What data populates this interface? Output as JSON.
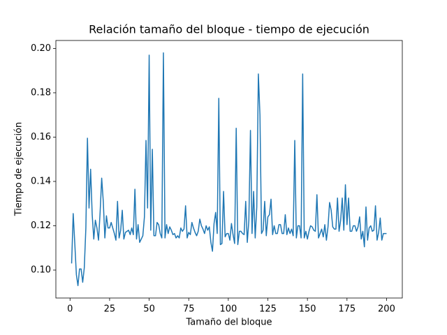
{
  "chart_data": {
    "type": "line",
    "title": "Relación tamaño del bloque - tiempo de ejecución",
    "xlabel": "Tamaño del bloque",
    "ylabel": "Tiempo de ejecución",
    "color": "#1f77b4",
    "x": [
      1,
      2,
      3,
      4,
      5,
      6,
      7,
      8,
      9,
      10,
      11,
      12,
      13,
      14,
      15,
      16,
      17,
      18,
      19,
      20,
      21,
      22,
      23,
      24,
      25,
      26,
      27,
      28,
      29,
      30,
      31,
      32,
      33,
      34,
      35,
      36,
      37,
      38,
      39,
      40,
      41,
      42,
      43,
      44,
      45,
      46,
      47,
      48,
      49,
      50,
      51,
      52,
      53,
      54,
      55,
      56,
      57,
      58,
      59,
      60,
      61,
      62,
      63,
      64,
      65,
      66,
      67,
      68,
      69,
      70,
      71,
      72,
      73,
      74,
      75,
      76,
      77,
      78,
      79,
      80,
      81,
      82,
      83,
      84,
      85,
      86,
      87,
      88,
      89,
      90,
      91,
      92,
      93,
      94,
      95,
      96,
      97,
      98,
      99,
      100,
      101,
      102,
      103,
      104,
      105,
      106,
      107,
      108,
      109,
      110,
      111,
      112,
      113,
      114,
      115,
      116,
      117,
      118,
      119,
      120,
      121,
      122,
      123,
      124,
      125,
      126,
      127,
      128,
      129,
      130,
      131,
      132,
      133,
      134,
      135,
      136,
      137,
      138,
      139,
      140,
      141,
      142,
      143,
      144,
      145,
      146,
      147,
      148,
      149,
      150,
      151,
      152,
      153,
      154,
      155,
      156,
      157,
      158,
      159,
      160,
      161,
      162,
      163,
      164,
      165,
      166,
      167,
      168,
      169,
      170,
      171,
      172,
      173,
      174,
      175,
      176,
      177,
      178,
      179,
      180,
      181,
      182,
      183,
      184,
      185,
      186,
      187,
      188,
      189,
      190,
      191,
      192,
      193,
      194,
      195,
      196,
      197,
      198,
      199,
      200
    ],
    "values": [
      0.103,
      0.1255,
      0.112,
      0.098,
      0.093,
      0.1005,
      0.1005,
      0.0945,
      0.101,
      0.119,
      0.1595,
      0.128,
      0.1455,
      0.125,
      0.114,
      0.1225,
      0.119,
      0.1135,
      0.126,
      0.1415,
      0.131,
      0.1145,
      0.1245,
      0.119,
      0.119,
      0.1215,
      0.119,
      0.1165,
      0.1135,
      0.131,
      0.1145,
      0.118,
      0.127,
      0.114,
      0.117,
      0.1175,
      0.118,
      0.116,
      0.119,
      0.116,
      0.1365,
      0.114,
      0.1205,
      0.1125,
      0.114,
      0.1155,
      0.124,
      0.1585,
      0.128,
      0.197,
      0.118,
      0.1545,
      0.1155,
      0.1155,
      0.1215,
      0.1205,
      0.1165,
      0.1145,
      0.198,
      0.1145,
      0.1205,
      0.1165,
      0.1195,
      0.118,
      0.116,
      0.1165,
      0.1145,
      0.1155,
      0.1145,
      0.119,
      0.1175,
      0.1185,
      0.129,
      0.1145,
      0.117,
      0.116,
      0.1215,
      0.119,
      0.117,
      0.1155,
      0.1175,
      0.123,
      0.12,
      0.1185,
      0.1165,
      0.12,
      0.118,
      0.1195,
      0.1125,
      0.1085,
      0.121,
      0.126,
      0.1165,
      0.1775,
      0.1115,
      0.112,
      0.1355,
      0.115,
      0.1165,
      0.1165,
      0.1135,
      0.121,
      0.116,
      0.112,
      0.164,
      0.1115,
      0.1175,
      0.1175,
      0.1165,
      0.116,
      0.131,
      0.1125,
      0.1225,
      0.163,
      0.1165,
      0.1355,
      0.1145,
      0.1285,
      0.1885,
      0.17,
      0.1165,
      0.118,
      0.131,
      0.1155,
      0.124,
      0.125,
      0.132,
      0.116,
      0.12,
      0.1165,
      0.1165,
      0.1205,
      0.1205,
      0.1165,
      0.1165,
      0.125,
      0.116,
      0.119,
      0.1165,
      0.1185,
      0.1155,
      0.1585,
      0.1145,
      0.12,
      0.12,
      0.1145,
      0.1885,
      0.1145,
      0.1175,
      0.114,
      0.1175,
      0.12,
      0.1195,
      0.118,
      0.1175,
      0.134,
      0.1145,
      0.1165,
      0.1185,
      0.115,
      0.1205,
      0.1135,
      0.1195,
      0.1305,
      0.127,
      0.1195,
      0.1185,
      0.1185,
      0.1325,
      0.1175,
      0.1225,
      0.1325,
      0.118,
      0.1385,
      0.1205,
      0.1325,
      0.1175,
      0.1175,
      0.12,
      0.12,
      0.1175,
      0.1195,
      0.124,
      0.114,
      0.1175,
      0.1105,
      0.1285,
      0.1135,
      0.119,
      0.12,
      0.1175,
      0.118,
      0.129,
      0.1135,
      0.117,
      0.1235,
      0.1135,
      0.1165,
      0.1165,
      0.1165
    ],
    "xlim": [
      -8.95,
      209.95
    ],
    "ylim": [
      0.0874,
      0.2036
    ],
    "xticks": [
      0,
      25,
      50,
      75,
      100,
      125,
      150,
      175,
      200
    ],
    "yticks": [
      {
        "value": 0.1,
        "label": "0.10"
      },
      0.12,
      0.14,
      0.16,
      0.18,
      {
        "value": 0.2,
        "label": "0.20"
      }
    ]
  }
}
